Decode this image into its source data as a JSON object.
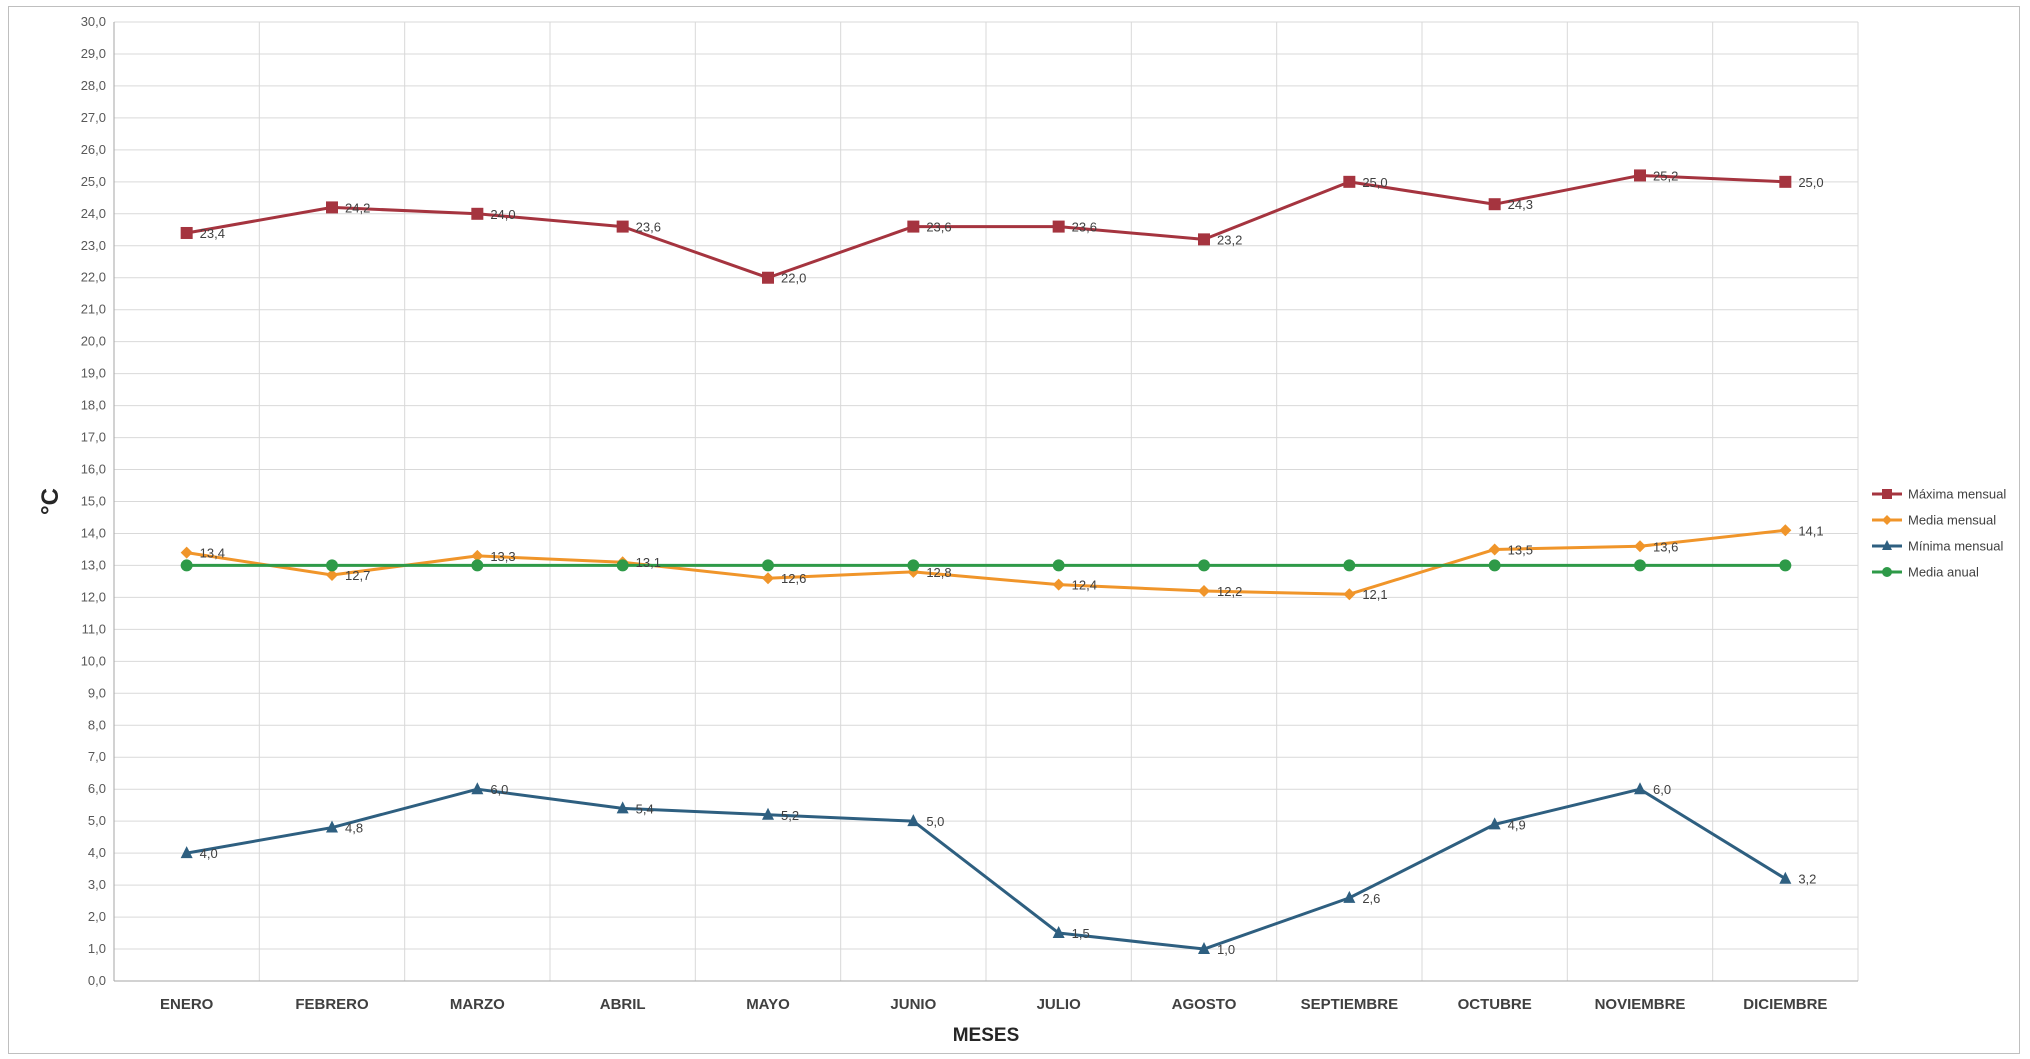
{
  "chart_data": {
    "type": "line",
    "xlabel": "MESES",
    "ylabel": "°C",
    "ylim": [
      0,
      30
    ],
    "y_step": 1,
    "y_tick_format": "one-decimal-comma",
    "grid": true,
    "legend_position": "right",
    "categories": [
      "ENERO",
      "FEBRERO",
      "MARZO",
      "ABRIL",
      "MAYO",
      "JUNIO",
      "JULIO",
      "AGOSTO",
      "SEPTIEMBRE",
      "OCTUBRE",
      "NOVIEMBRE",
      "DICIEMBRE"
    ],
    "series": [
      {
        "name": "Máxima mensual",
        "color": "#a5343f",
        "marker": "square",
        "values": [
          23.4,
          24.2,
          24.0,
          23.6,
          22.0,
          23.6,
          23.6,
          23.2,
          25.0,
          24.3,
          25.2,
          25.0
        ],
        "labels": [
          "23,4",
          "24,2",
          "24,0",
          "23,6",
          "22,0",
          "23,6",
          "23,6",
          "23,2",
          "25,0",
          "24,3",
          "25,2",
          "25,0"
        ]
      },
      {
        "name": "Media mensual",
        "color": "#f0952a",
        "marker": "diamond",
        "values": [
          13.4,
          12.7,
          13.3,
          13.1,
          12.6,
          12.8,
          12.4,
          12.2,
          12.1,
          13.5,
          13.6,
          14.1
        ],
        "labels": [
          "13,4",
          "12,7",
          "13,3",
          "13,1",
          "12,6",
          "12,8",
          "12,4",
          "12,2",
          "12,1",
          "13,5",
          "13,6",
          "14,1"
        ]
      },
      {
        "name": "Mínima mensual",
        "color": "#2e5f80",
        "marker": "triangle",
        "values": [
          4.0,
          4.8,
          6.0,
          5.4,
          5.2,
          5.0,
          1.5,
          1.0,
          2.6,
          4.9,
          6.0,
          3.2
        ],
        "labels": [
          "4,0",
          "4,8",
          "6,0",
          "5,4",
          "5,2",
          "5,0",
          "1,5",
          "1,0",
          "2,6",
          "4,9",
          "6,0",
          "3,2"
        ]
      },
      {
        "name": "Media anual",
        "color": "#2e9a48",
        "marker": "circle",
        "values": [
          13.0,
          13.0,
          13.0,
          13.0,
          13.0,
          13.0,
          13.0,
          13.0,
          13.0,
          13.0,
          13.0,
          13.0
        ],
        "labels": []
      }
    ]
  }
}
